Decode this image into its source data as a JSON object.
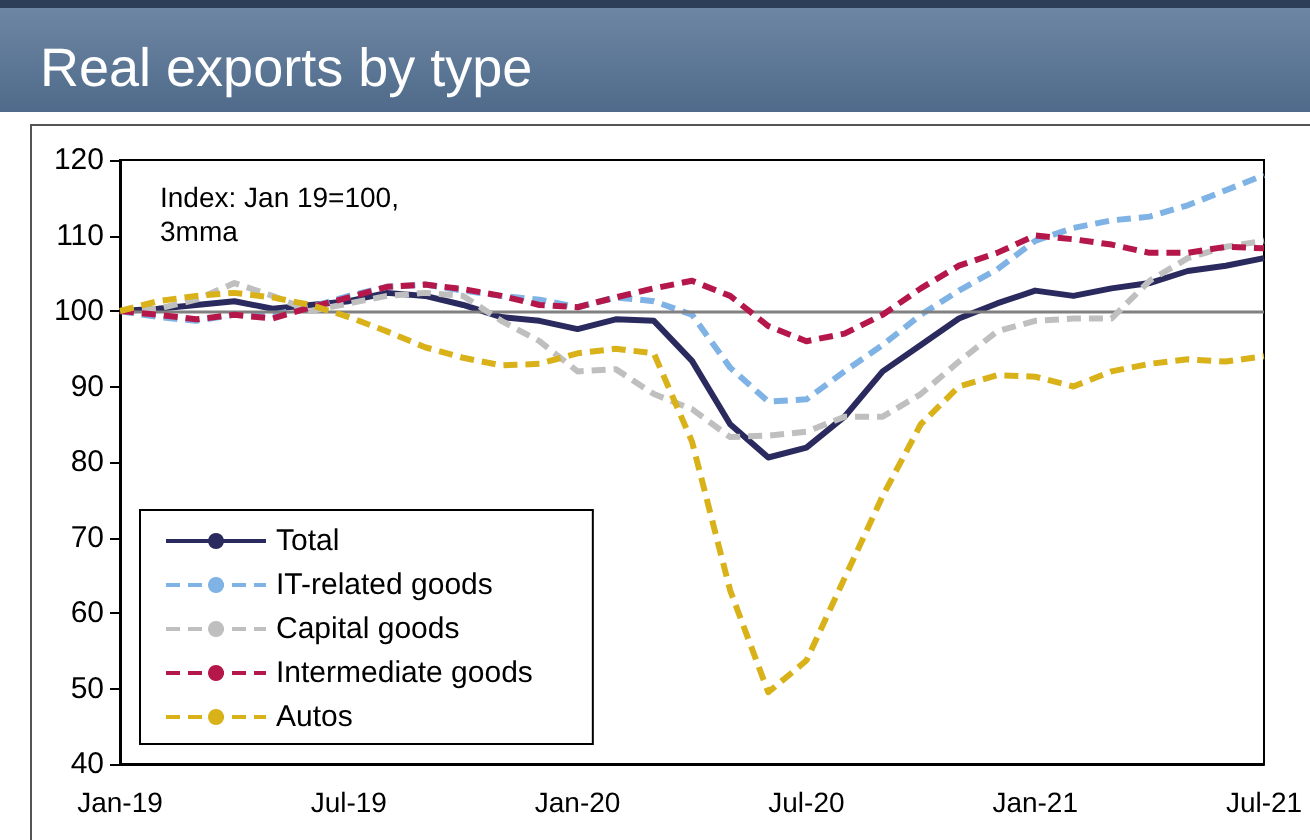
{
  "chart_data": {
    "type": "line",
    "title": "Real exports by type",
    "annotations": [
      "Index: Jan 19=100,\n3mma"
    ],
    "categories": [
      "Jan-19",
      null,
      null,
      null,
      null,
      null,
      "Jul-19",
      null,
      null,
      null,
      null,
      null,
      "Jan-20",
      null,
      null,
      null,
      null,
      null,
      "Jul-20",
      null,
      null,
      null,
      null,
      null,
      "Jan-21",
      null,
      null,
      null,
      null,
      null,
      "Jul-21"
    ],
    "ylim": [
      40,
      120
    ],
    "yticks": [
      40,
      50,
      60,
      70,
      80,
      90,
      100,
      110,
      120
    ],
    "grid": false,
    "legend": "bottom left",
    "marker": "none",
    "ref_lines": [
      {
        "axis": "y",
        "value": 100,
        "color": "#808080",
        "line_style": "solid"
      }
    ],
    "series": [
      {
        "name": "Total",
        "color": "#2b2a5e",
        "line_style": "solid",
        "values": [
          100,
          100.3,
          100.8,
          101.3,
          100.3,
          100.8,
          101.3,
          102.4,
          102,
          100.8,
          99.2,
          98.7,
          97.6,
          98.9,
          98.7,
          93.4,
          85,
          80.6,
          81.9,
          86,
          92,
          95.5,
          99,
          101,
          102.7,
          102,
          103,
          103.7,
          105.3,
          106,
          107
        ]
      },
      {
        "name": "IT-related goods",
        "color": "#7fb2e5",
        "line_style": "dashed",
        "values": [
          100,
          99.2,
          98.7,
          99.5,
          99.5,
          100.5,
          102,
          103.2,
          103.5,
          102.7,
          102,
          101.5,
          100.5,
          101.8,
          101.3,
          99.5,
          92.5,
          88,
          88.3,
          92,
          95.5,
          99.5,
          102.7,
          105.5,
          109.3,
          111,
          112,
          112.5,
          114,
          116,
          118
        ]
      },
      {
        "name": "Capital goods",
        "color": "#bfbfbf",
        "line_style": "dashed",
        "values": [
          100,
          100.3,
          101.5,
          103.7,
          102,
          100,
          101,
          102,
          102.4,
          102,
          98.7,
          96,
          92,
          92.3,
          89,
          87,
          83.3,
          83.5,
          84,
          86,
          86,
          89,
          93.3,
          97.3,
          98.7,
          99,
          99,
          104,
          107,
          108.5,
          109.3
        ]
      },
      {
        "name": "Intermediate goods",
        "color": "#b5174b",
        "line_style": "dashed",
        "values": [
          100,
          99.5,
          98.9,
          99.5,
          99,
          100.5,
          101.8,
          103.2,
          103.5,
          102.9,
          102,
          100.8,
          100.5,
          101.8,
          103,
          104,
          102,
          98,
          96,
          97,
          99.5,
          103,
          106,
          107.7,
          110,
          109.5,
          108.8,
          107.7,
          107.7,
          108.5,
          108.3
        ]
      },
      {
        "name": "Autos",
        "color": "#d9b21a",
        "line_style": "dashed",
        "values": [
          100,
          101.3,
          102,
          102.4,
          101.8,
          100.8,
          99.2,
          97.3,
          95.2,
          93.8,
          92.8,
          93,
          94.4,
          95,
          94.4,
          82.7,
          63,
          49.5,
          53.7,
          64.6,
          75.5,
          85,
          90,
          91.5,
          91.3,
          90,
          92,
          93,
          93.6,
          93.3,
          94
        ]
      }
    ]
  }
}
